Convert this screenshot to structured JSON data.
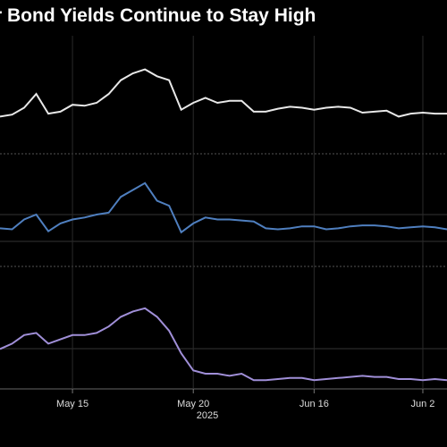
{
  "chart_data": {
    "type": "line",
    "title": "r Bond Yields Continue to Stay High",
    "categories": [
      null,
      null,
      null,
      null,
      null,
      null,
      "May 15",
      null,
      null,
      null,
      null,
      null,
      null,
      null,
      null,
      null,
      "May 20",
      null,
      null,
      null,
      null,
      null,
      null,
      null,
      null,
      null,
      "Jun 16",
      null,
      null,
      null,
      null,
      null,
      null,
      null,
      null,
      "Jun 2",
      null,
      null
    ],
    "year_label": "2025",
    "series": [
      {
        "color": "#e8e8e8",
        "ylim": [
          0,
          10
        ],
        "values": [
          3.6,
          3.8,
          4.5,
          5.9,
          3.9,
          4.1,
          4.8,
          4.7,
          5.0,
          5.9,
          7.3,
          8.0,
          8.4,
          7.7,
          7.3,
          4.3,
          5.0,
          5.5,
          5.0,
          5.2,
          5.2,
          4.1,
          4.1,
          4.4,
          4.6,
          4.5,
          4.3,
          4.5,
          4.6,
          4.5,
          4.0,
          4.1,
          4.2,
          3.6,
          3.9,
          4.0,
          3.9,
          3.9
        ]
      },
      {
        "color": "#4f7fbf",
        "ylim": [
          0,
          10
        ],
        "values": [
          3.6,
          3.5,
          4.5,
          5.0,
          3.3,
          4.1,
          4.5,
          4.7,
          5.0,
          5.2,
          6.8,
          7.5,
          8.2,
          6.4,
          5.9,
          3.2,
          4.1,
          4.7,
          4.5,
          4.5,
          4.4,
          4.3,
          3.6,
          3.5,
          3.6,
          3.8,
          3.8,
          3.5,
          3.6,
          3.8,
          3.9,
          3.9,
          3.8,
          3.6,
          3.7,
          3.8,
          3.7,
          3.5
        ]
      },
      {
        "color": "#a08fd8",
        "ylim": [
          0,
          10
        ],
        "values": [
          3.3,
          3.8,
          4.6,
          4.8,
          3.8,
          4.2,
          4.6,
          4.6,
          4.8,
          5.4,
          6.3,
          6.8,
          7.1,
          6.3,
          5.0,
          2.9,
          1.3,
          1.0,
          1.0,
          0.8,
          1.0,
          0.4,
          0.4,
          0.5,
          0.6,
          0.6,
          0.4,
          0.5,
          0.6,
          0.7,
          0.8,
          0.7,
          0.7,
          0.5,
          0.5,
          0.4,
          0.5,
          0.4
        ]
      }
    ]
  }
}
